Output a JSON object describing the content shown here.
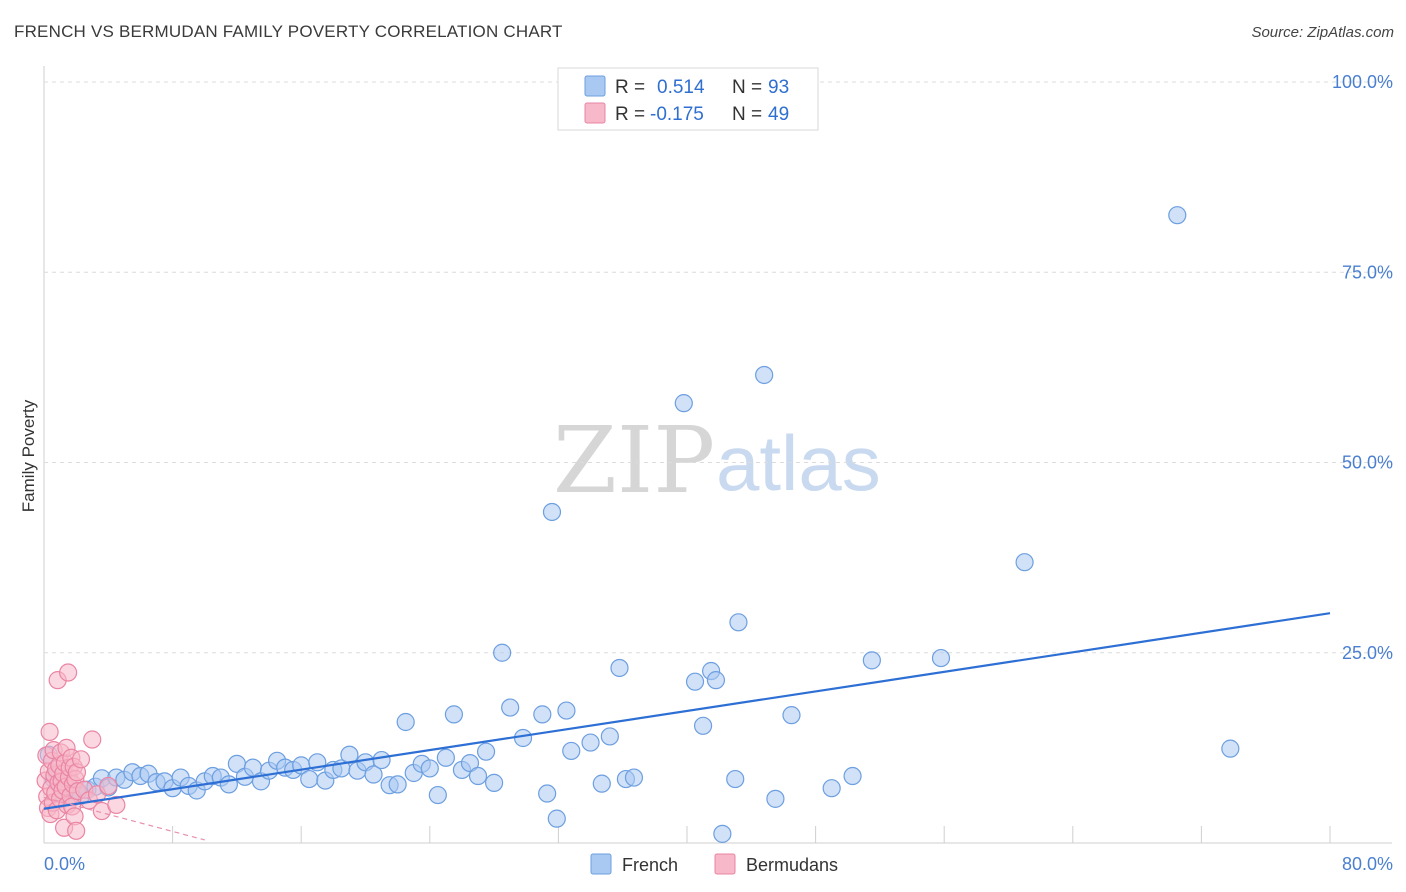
{
  "header": {
    "title": "FRENCH VS BERMUDAN FAMILY POVERTY CORRELATION CHART",
    "source": "Source: ZipAtlas.com"
  },
  "watermark": {
    "zip": "ZIP",
    "atlas": "atlas"
  },
  "legend": {
    "r_label": "R =",
    "n_label": "N =",
    "rows": [
      {
        "series": "French",
        "r": "0.514",
        "n": "93",
        "color": "#a9c8f2"
      },
      {
        "series": "Bermudans",
        "r": "-0.175",
        "n": "49",
        "color": "#f7b8c9"
      }
    ]
  },
  "chart_data": {
    "type": "scatter",
    "title": "FRENCH VS BERMUDAN FAMILY POVERTY CORRELATION CHART",
    "xlabel": "",
    "ylabel": "Family Poverty",
    "xlim": [
      0,
      80
    ],
    "ylim": [
      0,
      100
    ],
    "x_tick_labels": [
      "0.0%",
      "80.0%"
    ],
    "y_ticks": [
      25,
      50,
      75,
      100
    ],
    "y_tick_labels": [
      "25.0%",
      "50.0%",
      "75.0%",
      "100.0%"
    ],
    "grid": true,
    "legend_position": "top-center",
    "series": [
      {
        "name": "French",
        "color": "#a9c8f2",
        "edge": "#6d9fe0",
        "trend": {
          "x": [
            0,
            80
          ],
          "y": [
            4.5,
            30.2
          ],
          "color": "#2d6fd4"
        },
        "points": [
          [
            0.3,
            11.6
          ],
          [
            0.6,
            8.4
          ],
          [
            0.8,
            9.2
          ],
          [
            1.0,
            7.6
          ],
          [
            1.2,
            6.4
          ],
          [
            1.5,
            7.1
          ],
          [
            1.8,
            6.0
          ],
          [
            2.0,
            6.8
          ],
          [
            2.3,
            6.2
          ],
          [
            2.7,
            7.0
          ],
          [
            3.2,
            7.4
          ],
          [
            3.6,
            8.5
          ],
          [
            4.0,
            7.3
          ],
          [
            4.5,
            8.6
          ],
          [
            5.0,
            8.3
          ],
          [
            5.5,
            9.3
          ],
          [
            6.0,
            8.8
          ],
          [
            6.5,
            9.1
          ],
          [
            7.0,
            8.0
          ],
          [
            7.5,
            8.1
          ],
          [
            8.0,
            7.2
          ],
          [
            8.5,
            8.6
          ],
          [
            9.0,
            7.5
          ],
          [
            9.5,
            6.9
          ],
          [
            10.0,
            8.1
          ],
          [
            10.5,
            8.8
          ],
          [
            11.0,
            8.6
          ],
          [
            11.5,
            7.7
          ],
          [
            12.0,
            10.4
          ],
          [
            12.5,
            8.7
          ],
          [
            13.0,
            9.9
          ],
          [
            13.5,
            8.1
          ],
          [
            14.0,
            9.5
          ],
          [
            14.5,
            10.8
          ],
          [
            15.0,
            9.9
          ],
          [
            15.5,
            9.6
          ],
          [
            16.0,
            10.2
          ],
          [
            16.5,
            8.4
          ],
          [
            17.0,
            10.6
          ],
          [
            17.5,
            8.2
          ],
          [
            18.0,
            9.6
          ],
          [
            18.5,
            9.8
          ],
          [
            19.0,
            11.6
          ],
          [
            19.5,
            9.5
          ],
          [
            20.0,
            10.6
          ],
          [
            20.5,
            9.0
          ],
          [
            21.0,
            10.9
          ],
          [
            21.5,
            7.6
          ],
          [
            22.0,
            7.7
          ],
          [
            22.5,
            15.9
          ],
          [
            23.0,
            9.2
          ],
          [
            23.5,
            10.4
          ],
          [
            24.0,
            9.8
          ],
          [
            24.5,
            6.3
          ],
          [
            25.0,
            11.2
          ],
          [
            25.5,
            16.9
          ],
          [
            26.0,
            9.6
          ],
          [
            26.5,
            10.5
          ],
          [
            27.0,
            8.8
          ],
          [
            27.5,
            12.0
          ],
          [
            28.0,
            7.9
          ],
          [
            28.5,
            25.0
          ],
          [
            29.0,
            17.8
          ],
          [
            29.8,
            13.8
          ],
          [
            31.0,
            16.9
          ],
          [
            31.3,
            6.5
          ],
          [
            31.6,
            43.5
          ],
          [
            31.9,
            3.2
          ],
          [
            32.5,
            17.4
          ],
          [
            32.8,
            12.1
          ],
          [
            34.0,
            13.2
          ],
          [
            34.7,
            7.8
          ],
          [
            35.2,
            14.0
          ],
          [
            35.8,
            23.0
          ],
          [
            36.2,
            8.4
          ],
          [
            36.7,
            8.6
          ],
          [
            39.8,
            57.8
          ],
          [
            40.5,
            21.2
          ],
          [
            41.0,
            15.4
          ],
          [
            41.5,
            22.6
          ],
          [
            41.8,
            21.4
          ],
          [
            42.2,
            1.2
          ],
          [
            43.0,
            8.4
          ],
          [
            43.2,
            29.0
          ],
          [
            44.8,
            61.5
          ],
          [
            45.5,
            5.8
          ],
          [
            46.5,
            16.8
          ],
          [
            49.0,
            7.2
          ],
          [
            50.3,
            8.8
          ],
          [
            51.5,
            24.0
          ],
          [
            55.8,
            24.3
          ],
          [
            61.0,
            36.9
          ],
          [
            70.5,
            82.5
          ],
          [
            73.8,
            12.4
          ]
        ]
      },
      {
        "name": "Bermudans",
        "color": "#f7b8c9",
        "edge": "#ea85a4",
        "trend": {
          "x": [
            0,
            10
          ],
          "y": [
            6.0,
            0.4
          ],
          "color": "#e88fab",
          "dashed": true
        },
        "points": [
          [
            0.1,
            8.2
          ],
          [
            0.15,
            11.5
          ],
          [
            0.2,
            6.1
          ],
          [
            0.25,
            4.6
          ],
          [
            0.3,
            9.4
          ],
          [
            0.35,
            14.6
          ],
          [
            0.4,
            3.8
          ],
          [
            0.45,
            7.2
          ],
          [
            0.5,
            10.8
          ],
          [
            0.55,
            5.3
          ],
          [
            0.6,
            12.2
          ],
          [
            0.65,
            8.9
          ],
          [
            0.7,
            6.6
          ],
          [
            0.75,
            9.7
          ],
          [
            0.8,
            4.3
          ],
          [
            0.85,
            21.4
          ],
          [
            0.9,
            7.9
          ],
          [
            0.95,
            10.2
          ],
          [
            1.0,
            5.8
          ],
          [
            1.05,
            11.9
          ],
          [
            1.1,
            8.1
          ],
          [
            1.15,
            6.9
          ],
          [
            1.2,
            9.1
          ],
          [
            1.25,
            2.0
          ],
          [
            1.3,
            10.5
          ],
          [
            1.35,
            7.4
          ],
          [
            1.4,
            12.5
          ],
          [
            1.45,
            5.0
          ],
          [
            1.5,
            22.4
          ],
          [
            1.55,
            8.6
          ],
          [
            1.6,
            9.9
          ],
          [
            1.65,
            6.2
          ],
          [
            1.7,
            11.2
          ],
          [
            1.75,
            4.8
          ],
          [
            1.8,
            7.7
          ],
          [
            1.85,
            10.0
          ],
          [
            1.9,
            3.5
          ],
          [
            1.95,
            8.4
          ],
          [
            2.0,
            1.6
          ],
          [
            2.05,
            9.3
          ],
          [
            2.1,
            6.8
          ],
          [
            2.3,
            11.0
          ],
          [
            2.5,
            7.0
          ],
          [
            2.8,
            5.6
          ],
          [
            3.0,
            13.6
          ],
          [
            3.3,
            6.4
          ],
          [
            3.6,
            4.2
          ],
          [
            4.0,
            7.5
          ],
          [
            4.5,
            5.0
          ]
        ]
      }
    ]
  },
  "bottom_legend": [
    {
      "label": "French",
      "color": "#a9c8f2"
    },
    {
      "label": "Bermudans",
      "color": "#f7b8c9"
    }
  ]
}
